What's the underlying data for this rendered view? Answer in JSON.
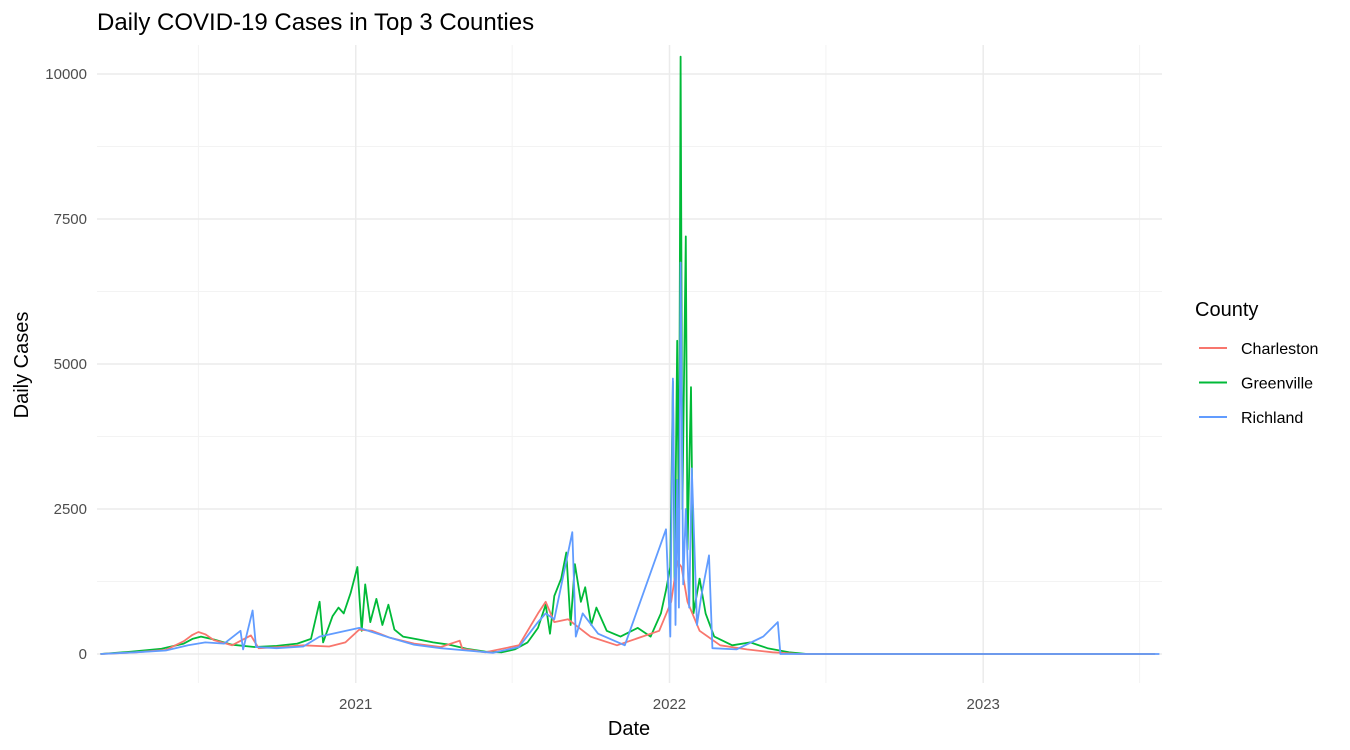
{
  "chart_data": {
    "type": "line",
    "title": "Daily COVID-19 Cases in Top 3 Counties",
    "xlabel": "Date",
    "ylabel": "Daily Cases",
    "x_axis": {
      "type": "date",
      "range": [
        "2020-03-06",
        "2023-07-28"
      ],
      "ticks": [
        {
          "date": "2021-01-01",
          "label": "2021"
        },
        {
          "date": "2022-01-01",
          "label": "2022"
        },
        {
          "date": "2023-01-01",
          "label": "2023"
        }
      ],
      "minor_ticks": [
        "2020-07-02",
        "2021-07-02",
        "2022-07-02",
        "2023-07-02"
      ]
    },
    "y_axis": {
      "range": [
        -500,
        10500
      ],
      "ticks": [
        0,
        2500,
        5000,
        7500,
        10000
      ],
      "tick_labels": [
        "0",
        "2500",
        "5000",
        "7500",
        "10000"
      ],
      "minor_ticks": [
        1250,
        3750,
        6250,
        8750
      ]
    },
    "grid": true,
    "legend": {
      "title": "County",
      "position": "right"
    },
    "series": [
      {
        "name": "Greenville",
        "color": "#00BA38",
        "points": [
          [
            "2020-03-10",
            0
          ],
          [
            "2020-04-15",
            40
          ],
          [
            "2020-05-20",
            90
          ],
          [
            "2020-06-15",
            180
          ],
          [
            "2020-06-25",
            260
          ],
          [
            "2020-07-05",
            300
          ],
          [
            "2020-07-20",
            250
          ],
          [
            "2020-08-10",
            160
          ],
          [
            "2020-09-05",
            120
          ],
          [
            "2020-10-01",
            140
          ],
          [
            "2020-10-25",
            180
          ],
          [
            "2020-11-10",
            260
          ],
          [
            "2020-11-20",
            900
          ],
          [
            "2020-11-24",
            200
          ],
          [
            "2020-12-05",
            650
          ],
          [
            "2020-12-12",
            800
          ],
          [
            "2020-12-18",
            700
          ],
          [
            "2020-12-26",
            1050
          ],
          [
            "2021-01-03",
            1500
          ],
          [
            "2021-01-08",
            400
          ],
          [
            "2021-01-12",
            1200
          ],
          [
            "2021-01-18",
            550
          ],
          [
            "2021-01-25",
            950
          ],
          [
            "2021-02-01",
            500
          ],
          [
            "2021-02-08",
            850
          ],
          [
            "2021-02-15",
            420
          ],
          [
            "2021-02-25",
            300
          ],
          [
            "2021-03-15",
            250
          ],
          [
            "2021-04-01",
            200
          ],
          [
            "2021-04-20",
            160
          ],
          [
            "2021-05-10",
            90
          ],
          [
            "2021-06-01",
            40
          ],
          [
            "2021-06-20",
            30
          ],
          [
            "2021-07-05",
            80
          ],
          [
            "2021-07-20",
            200
          ],
          [
            "2021-08-01",
            450
          ],
          [
            "2021-08-10",
            850
          ],
          [
            "2021-08-15",
            350
          ],
          [
            "2021-08-20",
            1000
          ],
          [
            "2021-08-28",
            1300
          ],
          [
            "2021-09-03",
            1750
          ],
          [
            "2021-09-08",
            500
          ],
          [
            "2021-09-13",
            1550
          ],
          [
            "2021-09-20",
            900
          ],
          [
            "2021-09-25",
            1150
          ],
          [
            "2021-10-02",
            500
          ],
          [
            "2021-10-08",
            800
          ],
          [
            "2021-10-20",
            400
          ],
          [
            "2021-11-05",
            300
          ],
          [
            "2021-11-25",
            450
          ],
          [
            "2021-12-10",
            300
          ],
          [
            "2021-12-22",
            700
          ],
          [
            "2021-12-28",
            1100
          ],
          [
            "2022-01-02",
            1500
          ],
          [
            "2022-01-05",
            4700
          ],
          [
            "2022-01-07",
            1200
          ],
          [
            "2022-01-10",
            5400
          ],
          [
            "2022-01-12",
            2000
          ],
          [
            "2022-01-14",
            10300
          ],
          [
            "2022-01-16",
            2500
          ],
          [
            "2022-01-20",
            7200
          ],
          [
            "2022-01-22",
            1800
          ],
          [
            "2022-01-26",
            4600
          ],
          [
            "2022-01-29",
            700
          ],
          [
            "2022-02-05",
            1300
          ],
          [
            "2022-02-12",
            700
          ],
          [
            "2022-02-22",
            300
          ],
          [
            "2022-03-15",
            150
          ],
          [
            "2022-04-05",
            200
          ],
          [
            "2022-04-25",
            100
          ],
          [
            "2022-05-20",
            30
          ],
          [
            "2022-06-10",
            0
          ],
          [
            "2022-09-01",
            0
          ],
          [
            "2023-01-01",
            0
          ],
          [
            "2023-07-20",
            0
          ]
        ]
      },
      {
        "name": "Charleston",
        "color": "#F8766D",
        "points": [
          [
            "2020-03-10",
            0
          ],
          [
            "2020-04-20",
            30
          ],
          [
            "2020-05-25",
            70
          ],
          [
            "2020-06-15",
            220
          ],
          [
            "2020-06-25",
            330
          ],
          [
            "2020-07-02",
            380
          ],
          [
            "2020-07-10",
            340
          ],
          [
            "2020-07-20",
            240
          ],
          [
            "2020-08-10",
            150
          ],
          [
            "2020-09-01",
            320
          ],
          [
            "2020-09-10",
            100
          ],
          [
            "2020-10-05",
            120
          ],
          [
            "2020-11-01",
            150
          ],
          [
            "2020-12-01",
            130
          ],
          [
            "2020-12-20",
            200
          ],
          [
            "2021-01-05",
            420
          ],
          [
            "2021-01-20",
            400
          ],
          [
            "2021-02-10",
            280
          ],
          [
            "2021-03-10",
            180
          ],
          [
            "2021-04-10",
            120
          ],
          [
            "2021-05-02",
            230
          ],
          [
            "2021-05-05",
            90
          ],
          [
            "2021-06-01",
            30
          ],
          [
            "2021-07-10",
            150
          ],
          [
            "2021-08-01",
            700
          ],
          [
            "2021-08-10",
            900
          ],
          [
            "2021-08-20",
            550
          ],
          [
            "2021-09-05",
            600
          ],
          [
            "2021-10-01",
            300
          ],
          [
            "2021-11-01",
            150
          ],
          [
            "2021-12-20",
            400
          ],
          [
            "2022-01-03",
            900
          ],
          [
            "2022-01-10",
            1600
          ],
          [
            "2022-01-15",
            1500
          ],
          [
            "2022-01-22",
            900
          ],
          [
            "2022-02-05",
            400
          ],
          [
            "2022-03-01",
            150
          ],
          [
            "2022-04-01",
            80
          ],
          [
            "2022-05-01",
            30
          ],
          [
            "2022-06-01",
            0
          ],
          [
            "2023-01-01",
            0
          ],
          [
            "2023-07-20",
            0
          ]
        ]
      },
      {
        "name": "Richland",
        "color": "#619CFF",
        "points": [
          [
            "2020-03-10",
            0
          ],
          [
            "2020-04-20",
            30
          ],
          [
            "2020-05-25",
            60
          ],
          [
            "2020-06-20",
            150
          ],
          [
            "2020-07-10",
            200
          ],
          [
            "2020-08-01",
            180
          ],
          [
            "2020-08-20",
            400
          ],
          [
            "2020-08-23",
            80
          ],
          [
            "2020-09-03",
            750
          ],
          [
            "2020-09-07",
            120
          ],
          [
            "2020-10-01",
            100
          ],
          [
            "2020-11-01",
            130
          ],
          [
            "2020-11-20",
            300
          ],
          [
            "2020-12-05",
            350
          ],
          [
            "2021-01-05",
            450
          ],
          [
            "2021-01-20",
            380
          ],
          [
            "2021-02-10",
            280
          ],
          [
            "2021-03-10",
            160
          ],
          [
            "2021-04-10",
            100
          ],
          [
            "2021-05-10",
            60
          ],
          [
            "2021-06-10",
            20
          ],
          [
            "2021-07-10",
            120
          ],
          [
            "2021-08-01",
            550
          ],
          [
            "2021-08-10",
            700
          ],
          [
            "2021-08-20",
            600
          ],
          [
            "2021-09-10",
            2100
          ],
          [
            "2021-09-14",
            300
          ],
          [
            "2021-09-22",
            700
          ],
          [
            "2021-10-10",
            350
          ],
          [
            "2021-11-10",
            150
          ],
          [
            "2021-12-28",
            2150
          ],
          [
            "2022-01-02",
            300
          ],
          [
            "2022-01-05",
            4750
          ],
          [
            "2022-01-08",
            500
          ],
          [
            "2022-01-10",
            3000
          ],
          [
            "2022-01-12",
            800
          ],
          [
            "2022-01-14",
            6750
          ],
          [
            "2022-01-17",
            1200
          ],
          [
            "2022-01-20",
            2500
          ],
          [
            "2022-01-24",
            800
          ],
          [
            "2022-01-27",
            3200
          ],
          [
            "2022-02-02",
            500
          ],
          [
            "2022-02-07",
            1000
          ],
          [
            "2022-02-16",
            1700
          ],
          [
            "2022-02-20",
            100
          ],
          [
            "2022-03-20",
            80
          ],
          [
            "2022-04-20",
            300
          ],
          [
            "2022-05-07",
            550
          ],
          [
            "2022-05-10",
            0
          ],
          [
            "2023-01-01",
            0
          ],
          [
            "2023-07-25",
            0
          ]
        ]
      }
    ]
  }
}
